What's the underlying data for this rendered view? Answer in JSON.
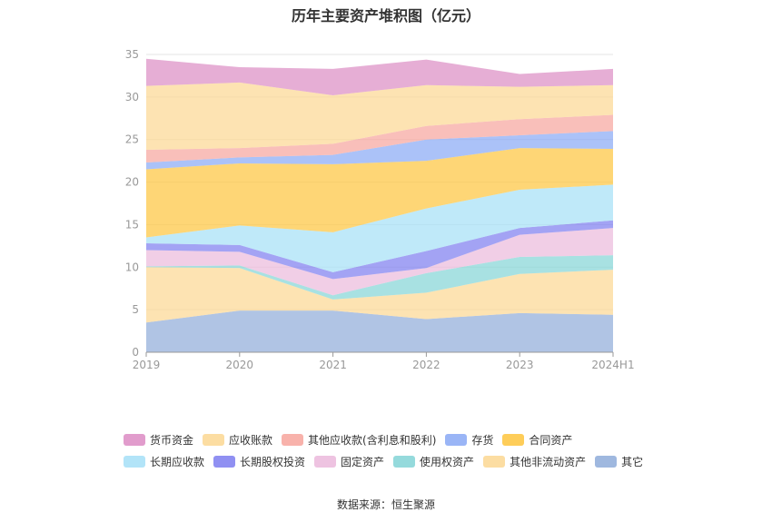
{
  "title": "历年主要资产堆积图（亿元）",
  "source": "数据来源：恒生聚源",
  "chart_data": {
    "type": "area",
    "stacked": true,
    "categories": [
      "2019",
      "2020",
      "2021",
      "2022",
      "2023",
      "2024H1"
    ],
    "ylim": [
      0,
      35
    ],
    "yticks": [
      0,
      5,
      10,
      15,
      20,
      25,
      30,
      35
    ],
    "grid": true,
    "legend_position": "bottom",
    "series": [
      {
        "name": "其它",
        "color": "#8eabd9",
        "values": [
          3.5,
          4.9,
          4.9,
          3.9,
          4.6,
          4.4
        ]
      },
      {
        "name": "其他非流动资产",
        "color": "#fcd792",
        "values": [
          6.5,
          5.0,
          1.3,
          3.1,
          4.6,
          5.3
        ]
      },
      {
        "name": "使用权资产",
        "color": "#83d4d6",
        "values": [
          0.1,
          0.3,
          0.5,
          2.3,
          2.0,
          1.7
        ]
      },
      {
        "name": "固定资产",
        "color": "#ebb9dc",
        "values": [
          1.9,
          1.6,
          1.9,
          0.6,
          2.6,
          3.2
        ]
      },
      {
        "name": "长期股权投资",
        "color": "#7c7cf0",
        "values": [
          0.8,
          0.8,
          0.8,
          2.0,
          0.8,
          0.9
        ]
      },
      {
        "name": "长期应收款",
        "color": "#a4dff7",
        "values": [
          0.7,
          2.3,
          4.7,
          5.0,
          4.5,
          4.2
        ]
      },
      {
        "name": "合同资产",
        "color": "#fec43c",
        "values": [
          8.0,
          7.3,
          8.0,
          5.6,
          4.9,
          4.2
        ]
      },
      {
        "name": "存货",
        "color": "#88a8f5",
        "values": [
          0.8,
          0.7,
          1.1,
          2.5,
          1.5,
          2.1
        ]
      },
      {
        "name": "其他应收款(含利息和股利)",
        "color": "#f7a49c",
        "values": [
          1.5,
          1.1,
          1.3,
          1.6,
          1.9,
          1.9
        ]
      },
      {
        "name": "应收账款",
        "color": "#fcd792",
        "values": [
          7.5,
          7.7,
          5.7,
          4.8,
          3.8,
          3.5
        ]
      },
      {
        "name": "货币资金",
        "color": "#dc8bc3",
        "values": [
          3.2,
          1.8,
          3.1,
          3.0,
          1.5,
          1.9
        ]
      }
    ],
    "legend_order": [
      "货币资金",
      "应收账款",
      "其他应收款(含利息和股利)",
      "存货",
      "合同资产",
      "长期应收款",
      "长期股权投资",
      "固定资产",
      "使用权资产",
      "其他非流动资产",
      "其它"
    ]
  }
}
